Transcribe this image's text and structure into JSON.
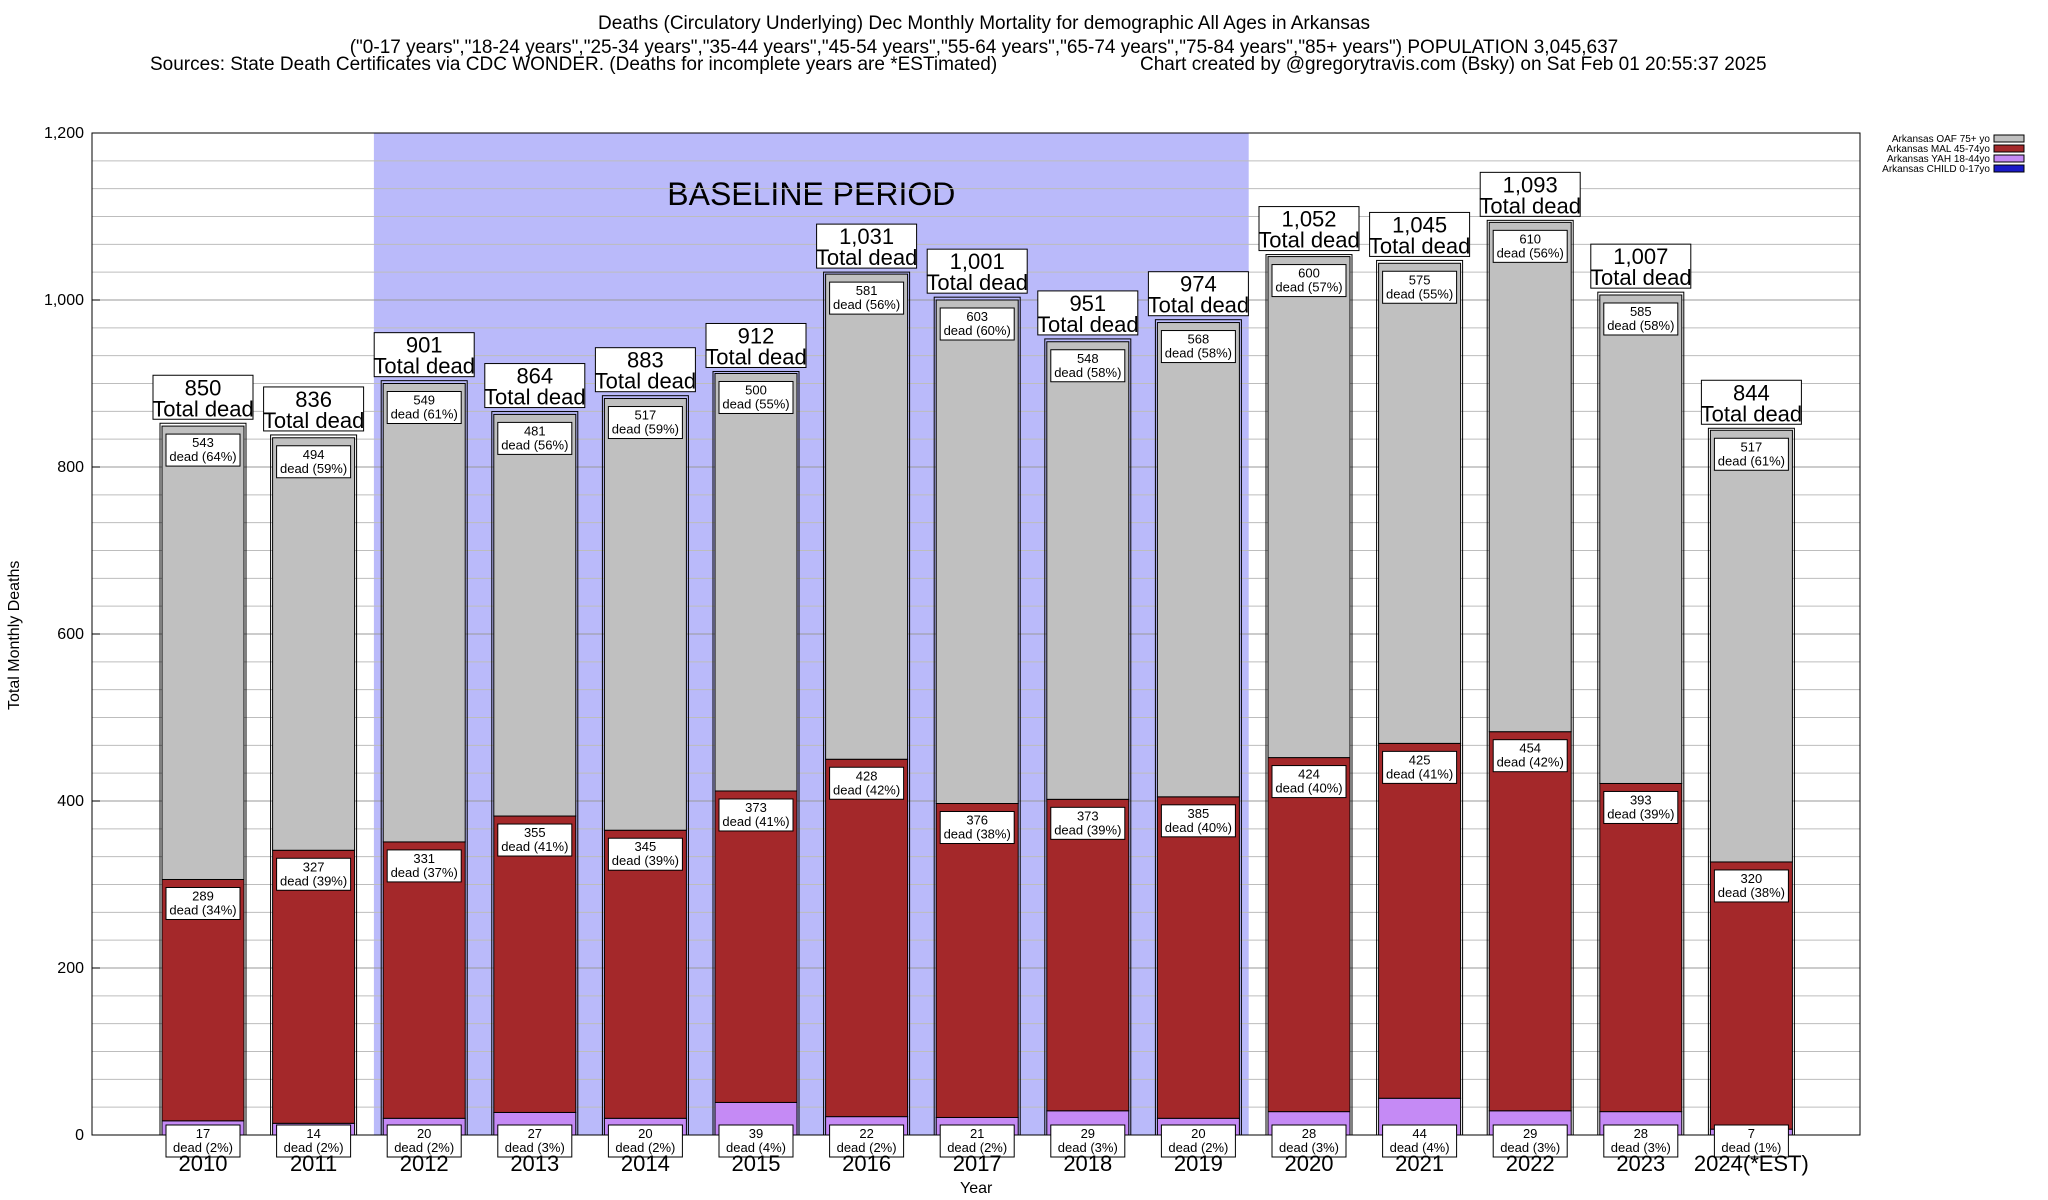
{
  "header": {
    "title": "Deaths (Circulatory Underlying) Dec Monthly Mortality for demographic All Ages in Arkansas",
    "subtitle": "(\"0-17 years\",\"18-24 years\",\"25-34 years\",\"35-44 years\",\"45-54 years\",\"55-64 years\",\"65-74 years\",\"75-84 years\",\"85+ years\") POPULATION 3,045,637",
    "sources": "Sources: State Death Certificates via CDC WONDER. (Deaths for incomplete years are *ESTimated)",
    "credit": "Chart created by @gregorytravis.com (Bsky) on Sat Feb 01 20:55:37 2025"
  },
  "chart_data": {
    "type": "bar",
    "stacked": true,
    "xlabel": "Year",
    "ylabel": "Total Monthly Deaths",
    "ylim": [
      0,
      1200
    ],
    "yticks": [
      0,
      200,
      400,
      600,
      800,
      1000,
      1200
    ],
    "ytick_labels": [
      "0",
      "200",
      "400",
      "600",
      "800",
      "1,000",
      "1,200"
    ],
    "grid": true,
    "legend_position": "top-right",
    "categories": [
      "2010",
      "2011",
      "2012",
      "2013",
      "2014",
      "2015",
      "2016",
      "2017",
      "2018",
      "2019",
      "2020",
      "2021",
      "2022",
      "2023",
      "2024(*EST)"
    ],
    "baseline_label": "BASELINE PERIOD",
    "baseline_range": [
      "2012",
      "2019"
    ],
    "baseline_color": "#babafa",
    "totals": [
      850,
      836,
      901,
      864,
      883,
      912,
      1031,
      1001,
      951,
      974,
      1052,
      1045,
      1093,
      1007,
      844
    ],
    "total_labels": [
      "850",
      "836",
      "901",
      "864",
      "883",
      "912",
      "1,031",
      "1,001",
      "951",
      "974",
      "1,052",
      "1,045",
      "1,093",
      "1,007",
      "844"
    ],
    "total_suffix": "Total dead",
    "dead_word": "dead",
    "series": [
      {
        "name": "Arkansas CHILD 0-17yo",
        "color": "#1a1ac8",
        "values": [
          0,
          0,
          0,
          0,
          0,
          0,
          0,
          0,
          0,
          0,
          0,
          0,
          0,
          0,
          0
        ],
        "pct_labels": []
      },
      {
        "name": "Arkansas YAH 18-44yo",
        "color": "#c58af5",
        "values": [
          17,
          14,
          20,
          27,
          20,
          39,
          22,
          21,
          29,
          20,
          28,
          44,
          29,
          28,
          7
        ],
        "pct_labels": [
          "(2%)",
          "(2%)",
          "(2%)",
          "(3%)",
          "(2%)",
          "(4%)",
          "(2%)",
          "(2%)",
          "(3%)",
          "(2%)",
          "(3%)",
          "(4%)",
          "(3%)",
          "(3%)",
          "(1%)"
        ]
      },
      {
        "name": "Arkansas MAL 45-74yo",
        "color": "#a4282a",
        "values": [
          289,
          327,
          331,
          355,
          345,
          373,
          428,
          376,
          373,
          385,
          424,
          425,
          454,
          393,
          320
        ],
        "pct_labels": [
          "(34%)",
          "(39%)",
          "(37%)",
          "(41%)",
          "(39%)",
          "(41%)",
          "(42%)",
          "(38%)",
          "(39%)",
          "(40%)",
          "(40%)",
          "(41%)",
          "(42%)",
          "(39%)",
          "(38%)"
        ]
      },
      {
        "name": "Arkansas OAF 75+ yo",
        "color": "#c0c0c0",
        "values": [
          543,
          494,
          549,
          481,
          517,
          500,
          581,
          603,
          548,
          568,
          600,
          575,
          610,
          585,
          517
        ],
        "pct_labels": [
          "(64%)",
          "(59%)",
          "(61%)",
          "(56%)",
          "(59%)",
          "(55%)",
          "(56%)",
          "(60%)",
          "(58%)",
          "(58%)",
          "(57%)",
          "(55%)",
          "(56%)",
          "(58%)",
          "(61%)"
        ]
      }
    ]
  }
}
